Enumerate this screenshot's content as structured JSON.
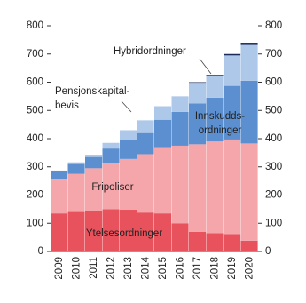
{
  "chart_data": {
    "type": "stacked_bar",
    "categories": [
      "2009",
      "2010",
      "2011",
      "2012",
      "2013",
      "2014",
      "2015",
      "2016",
      "2017",
      "2018",
      "2019",
      "2020"
    ],
    "series": [
      {
        "name": [
          "Ytelsesordninger"
        ],
        "color": "#e8525c",
        "values": [
          135,
          140,
          142,
          150,
          148,
          138,
          135,
          100,
          70,
          65,
          62,
          38
        ]
      },
      {
        "name": [
          "Fripoliser"
        ],
        "color": "#f4a6aa",
        "values": [
          120,
          135,
          153,
          165,
          180,
          207,
          235,
          275,
          310,
          325,
          335,
          345
        ]
      },
      {
        "name": [
          "Innskudds-",
          "ordninger"
        ],
        "color": "#5b8fd0",
        "values": [
          30,
          35,
          40,
          50,
          67,
          75,
          97,
          120,
          145,
          155,
          190,
          222
        ]
      },
      {
        "name": [
          "Pensjonskapital-",
          "bevis"
        ],
        "color": "#adc8e8",
        "values": [
          2,
          6,
          8,
          20,
          35,
          45,
          48,
          55,
          73,
          78,
          108,
          127
        ]
      },
      {
        "name": [
          "Hybridordninger"
        ],
        "color": "#1d2a5a",
        "values": [
          0,
          0,
          0,
          0,
          0,
          0,
          0,
          0,
          2,
          3,
          5,
          8
        ]
      }
    ],
    "ylim": [
      0,
      800
    ],
    "yticks": [
      0,
      100,
      200,
      300,
      400,
      500,
      600,
      700,
      800
    ],
    "y2lim": [
      0,
      800
    ],
    "y2ticks": [
      0,
      100,
      200,
      300,
      400,
      500,
      600,
      700,
      800
    ]
  }
}
